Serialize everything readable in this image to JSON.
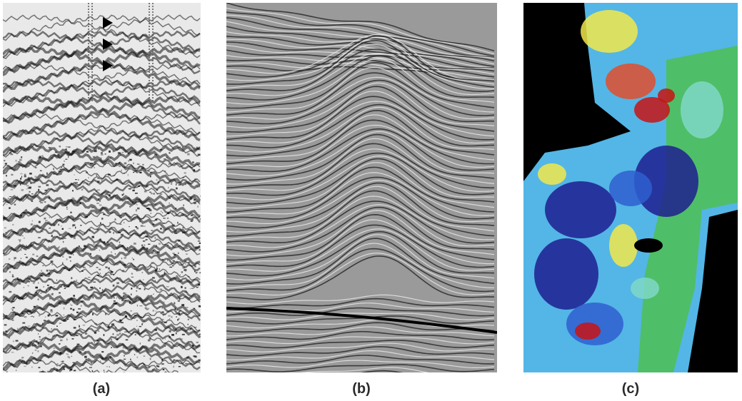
{
  "figure": {
    "panels": [
      {
        "id": "a",
        "caption": "(a)",
        "content": "raw-seismic-gather"
      },
      {
        "id": "b",
        "caption": "(b)",
        "content": "migrated-seismic-section"
      },
      {
        "id": "c",
        "caption": "(c)",
        "content": "seismic-attribute-map"
      }
    ]
  },
  "colors": {
    "background": "#ffffff",
    "caption_text": "#2b2b2b",
    "attribute_palette": [
      "#000000",
      "#1f1f8f",
      "#2f5fd0",
      "#53b6e6",
      "#7fd8c8",
      "#4fbf5a",
      "#f2e84a",
      "#e24d2b",
      "#c81414"
    ]
  }
}
